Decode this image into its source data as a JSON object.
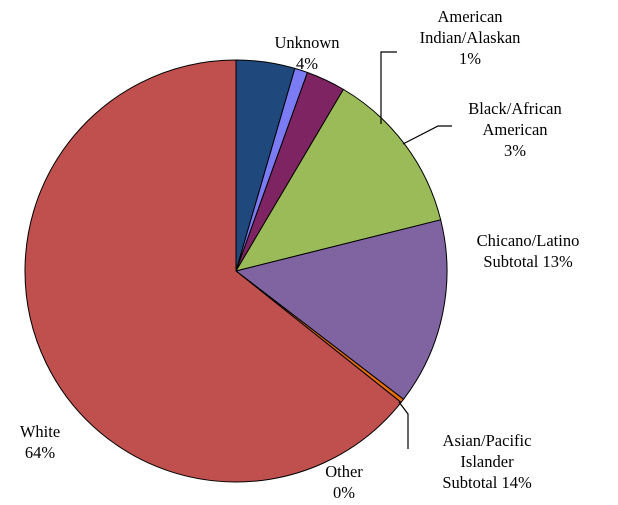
{
  "chart_data": {
    "type": "pie",
    "title": "",
    "slices": [
      {
        "label_lines": [
          "Unknown",
          "4%"
        ],
        "value": 4.5,
        "percent_label": "4%",
        "color": "#1F497D"
      },
      {
        "label_lines": [
          "American",
          "Indian/Alaskan",
          "1%"
        ],
        "value": 1.0,
        "percent_label": "1%",
        "color": "#7B7CF5"
      },
      {
        "label_lines": [
          "Black/African",
          "American",
          "3%"
        ],
        "value": 3.0,
        "percent_label": "3%",
        "color": "#7F2462"
      },
      {
        "label_lines": [
          "Chicano/Latino",
          "Subtotal 13%"
        ],
        "value": 12.6,
        "percent_label": "13%",
        "color": "#9BBB59"
      },
      {
        "label_lines": [
          "Asian/Pacific",
          "Islander",
          "Subtotal 14%"
        ],
        "value": 14.3,
        "percent_label": "14%",
        "color": "#8064A2"
      },
      {
        "label_lines": [
          "Other",
          "0%"
        ],
        "value": 0.3,
        "percent_label": "0%",
        "color": "#E46C0A"
      },
      {
        "label_lines": [
          "White",
          "64%"
        ],
        "value": 64.3,
        "percent_label": "64%",
        "color": "#C0504D"
      }
    ],
    "legend": "none",
    "start": "top, clockwise"
  }
}
